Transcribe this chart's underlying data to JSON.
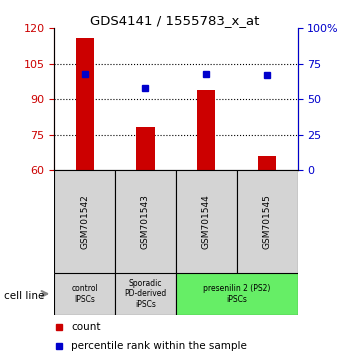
{
  "title": "GDS4141 / 1555783_x_at",
  "samples": [
    "GSM701542",
    "GSM701543",
    "GSM701544",
    "GSM701545"
  ],
  "red_values": [
    116,
    78,
    94,
    66
  ],
  "blue_values": [
    68,
    58,
    68,
    67
  ],
  "left_ylim": [
    60,
    120
  ],
  "right_ylim": [
    0,
    100
  ],
  "left_yticks": [
    60,
    75,
    90,
    105,
    120
  ],
  "right_yticks": [
    0,
    25,
    50,
    75,
    100
  ],
  "right_yticklabels": [
    "0",
    "25",
    "50",
    "75",
    "100%"
  ],
  "red_color": "#cc0000",
  "blue_color": "#0000cc",
  "bar_bottom": 60,
  "grid_lines": [
    75,
    90,
    105
  ],
  "cell_groups": [
    {
      "label": "control\nIPSCs",
      "start": 0,
      "end": 1,
      "color": "#d4d4d4"
    },
    {
      "label": "Sporadic\nPD-derived\niPSCs",
      "start": 1,
      "end": 2,
      "color": "#d4d4d4"
    },
    {
      "label": "presenilin 2 (PS2)\niPSCs",
      "start": 2,
      "end": 4,
      "color": "#66ee66"
    }
  ],
  "legend_count_label": "count",
  "legend_pct_label": "percentile rank within the sample",
  "cell_line_label": "cell line"
}
